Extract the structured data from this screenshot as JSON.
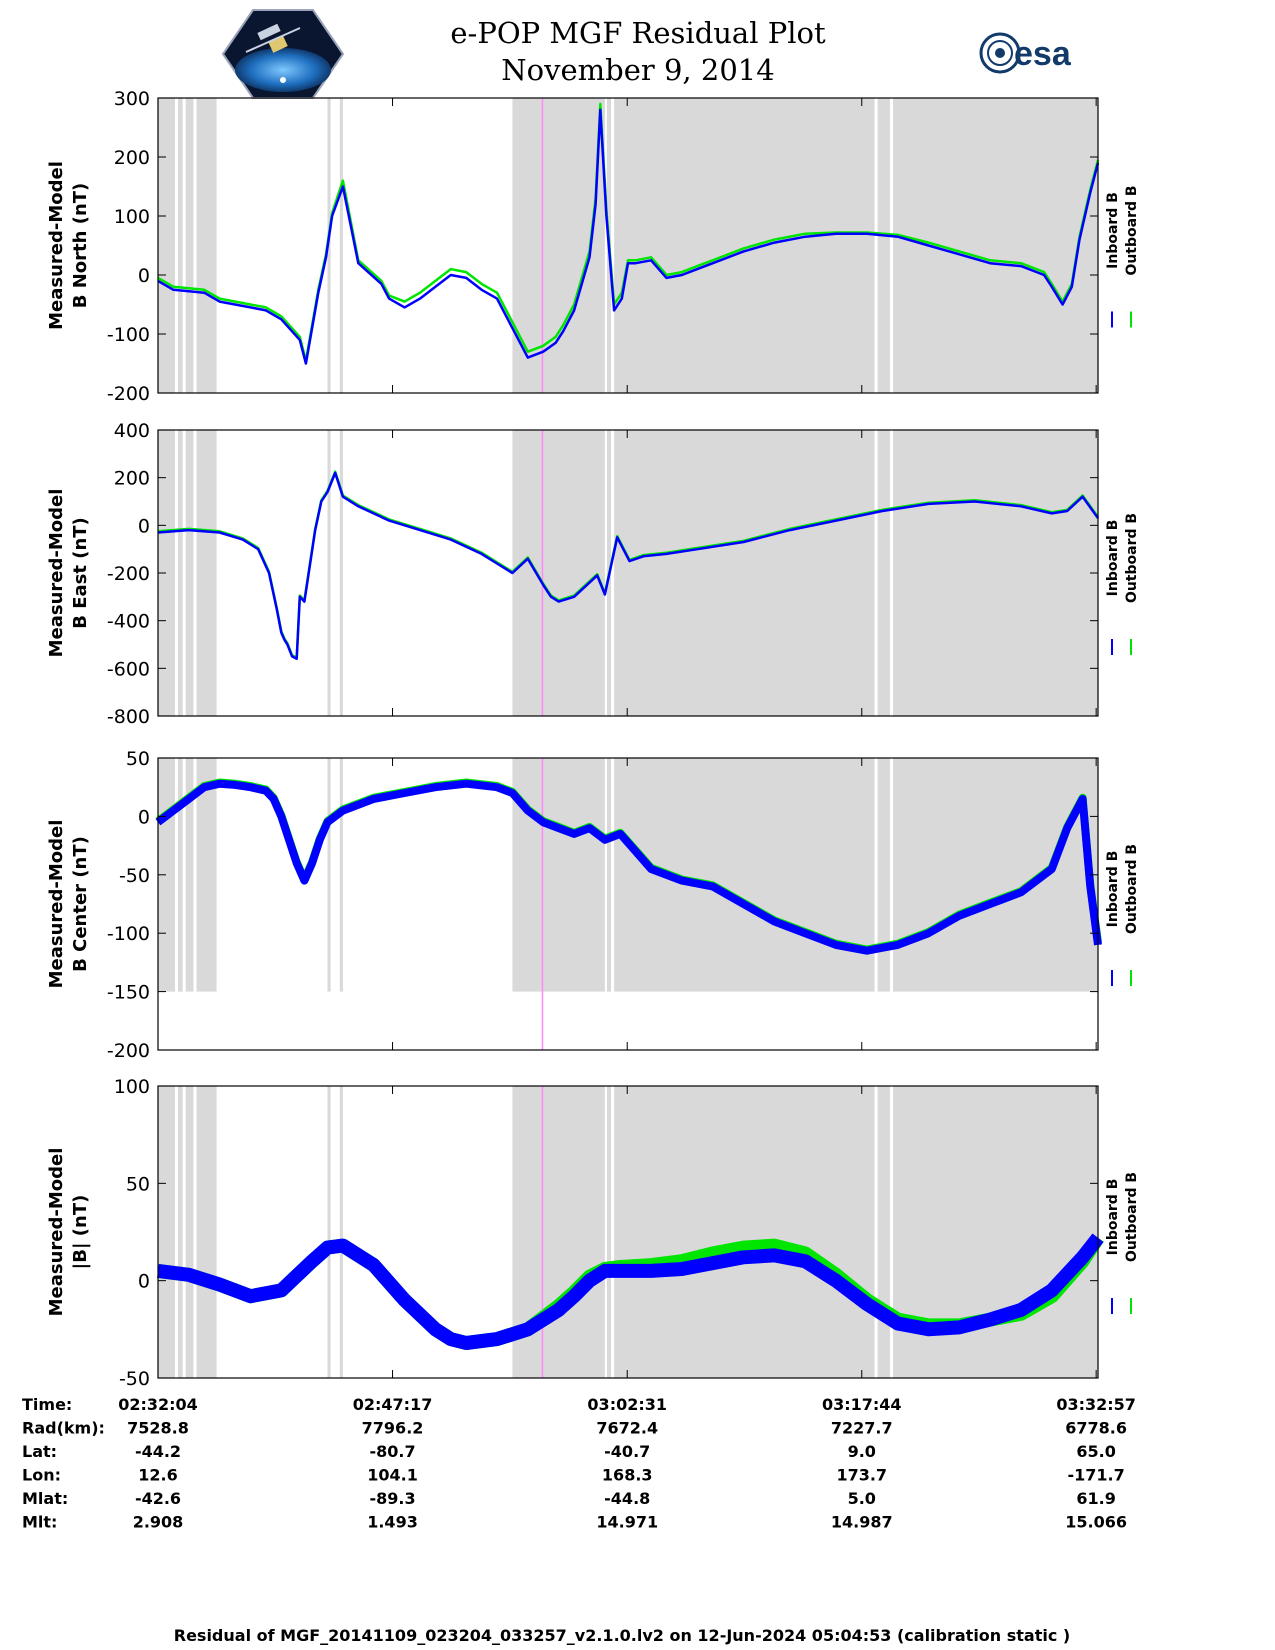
{
  "header": {
    "title_line1": "e-POP MGF Residual Plot",
    "title_line2": "November 9, 2014",
    "left_logo": "cassiope-mission-logo",
    "right_logo_text": "esa"
  },
  "legend": {
    "inboard": "Inboard B",
    "outboard": "Outboard B"
  },
  "colors": {
    "inboard": "#0000ff",
    "outboard": "#00e600",
    "shade": "#d9d9d9",
    "marker": "#ff88ff"
  },
  "ephemeris": {
    "rows": [
      {
        "label": "Time:",
        "values": [
          "02:32:04",
          "02:47:17",
          "03:02:31",
          "03:17:44",
          "03:32:57"
        ]
      },
      {
        "label": "Rad(km):",
        "values": [
          "7528.8",
          "7796.2",
          "7672.4",
          "7227.7",
          "6778.6"
        ]
      },
      {
        "label": "Lat:",
        "values": [
          "-44.2",
          "-80.7",
          "-40.7",
          "9.0",
          "65.0"
        ]
      },
      {
        "label": "Lon:",
        "values": [
          "12.6",
          "104.1",
          "168.3",
          "173.7",
          "-171.7"
        ]
      },
      {
        "label": "Mlat:",
        "values": [
          "-42.6",
          "-89.3",
          "-44.8",
          "5.0",
          "61.9"
        ]
      },
      {
        "label": "Mlt:",
        "values": [
          "2.908",
          "1.493",
          "14.971",
          "14.987",
          "15.066"
        ]
      }
    ]
  },
  "footer": "Residual of MGF_20141109_023204_033257_v2.1.0.lv2 on 12-Jun-2024 05:04:53 (calibration static )",
  "chart_data": [
    {
      "type": "line",
      "ylabel_line1": "Measured-Model",
      "ylabel_line2": "B North (nT)",
      "ylim": [
        -200,
        300
      ],
      "yticks": [
        -200,
        -100,
        0,
        100,
        200,
        300
      ],
      "xlim": [
        0,
        61
      ],
      "grid": false,
      "x_unit": "minutes after 02:32:04",
      "series": [
        {
          "name": "Inboard B",
          "x": [
            0,
            1,
            3,
            4,
            6,
            7,
            8,
            9.2,
            9.6,
            10.4,
            10.9,
            11.3,
            12,
            13,
            14.5,
            15,
            16,
            17,
            18,
            19,
            20,
            21,
            22,
            23,
            24,
            25,
            25.8,
            26.3,
            27,
            28,
            28.4,
            28.7,
            29.1,
            29.6,
            30.1,
            30.5,
            31,
            32,
            33,
            34,
            35,
            36,
            38,
            40,
            42,
            44,
            46,
            48,
            50,
            52,
            54,
            56,
            57.5,
            58,
            58.7,
            59.3,
            59.8,
            60.5,
            61
          ],
          "values": [
            -10,
            -25,
            -30,
            -45,
            -55,
            -60,
            -75,
            -110,
            -150,
            -30,
            30,
            100,
            150,
            20,
            -15,
            -40,
            -55,
            -40,
            -20,
            0,
            -5,
            -25,
            -40,
            -90,
            -140,
            -130,
            -115,
            -95,
            -60,
            30,
            120,
            280,
            100,
            -60,
            -40,
            20,
            20,
            25,
            -5,
            0,
            10,
            20,
            40,
            55,
            65,
            70,
            70,
            65,
            50,
            35,
            20,
            15,
            0,
            -20,
            -50,
            -20,
            60,
            140,
            190
          ]
        },
        {
          "name": "Outboard B",
          "x": [
            0,
            1,
            3,
            4,
            6,
            7,
            8,
            9.2,
            9.6,
            10.4,
            10.9,
            11.3,
            12,
            13,
            14.5,
            15,
            16,
            17,
            18,
            19,
            20,
            21,
            22,
            23,
            24,
            25,
            25.8,
            26.3,
            27,
            28,
            28.4,
            28.7,
            29.1,
            29.6,
            30.1,
            30.5,
            31,
            32,
            33,
            34,
            35,
            36,
            38,
            40,
            42,
            44,
            46,
            48,
            50,
            52,
            54,
            56,
            57.5,
            58,
            58.7,
            59.3,
            59.8,
            60.5,
            61
          ],
          "values": [
            -5,
            -20,
            -25,
            -40,
            -50,
            -55,
            -70,
            -105,
            -145,
            -25,
            35,
            105,
            160,
            25,
            -10,
            -35,
            -45,
            -30,
            -10,
            10,
            5,
            -15,
            -30,
            -80,
            -130,
            -120,
            -105,
            -85,
            -50,
            40,
            130,
            290,
            110,
            -50,
            -30,
            25,
            25,
            30,
            0,
            5,
            15,
            25,
            45,
            60,
            70,
            72,
            72,
            68,
            55,
            40,
            25,
            20,
            5,
            -15,
            -45,
            -15,
            65,
            145,
            195
          ]
        }
      ]
    },
    {
      "type": "line",
      "ylabel_line1": "Measured-Model",
      "ylabel_line2": "B East (nT)",
      "ylim": [
        -800,
        400
      ],
      "yticks": [
        -800,
        -600,
        -400,
        -200,
        0,
        200,
        400
      ],
      "xlim": [
        0,
        61
      ],
      "grid": false,
      "x_unit": "minutes after 02:32:04",
      "series": [
        {
          "name": "Inboard B",
          "x": [
            0,
            2,
            4,
            5.5,
            6.5,
            7.2,
            7.7,
            8,
            8.2,
            8.4,
            8.7,
            9,
            9.2,
            9.5,
            10.2,
            10.6,
            11,
            11.5,
            12,
            13,
            15,
            17,
            19,
            21,
            22,
            23,
            24,
            25,
            25.5,
            26,
            27,
            28.5,
            29,
            29.8,
            30.6,
            31.5,
            33,
            35,
            38,
            41,
            44,
            47,
            50,
            53,
            56,
            58,
            59,
            60,
            61
          ],
          "values": [
            -30,
            -20,
            -30,
            -60,
            -100,
            -200,
            -350,
            -450,
            -480,
            -500,
            -550,
            -560,
            -300,
            -320,
            -20,
            100,
            140,
            220,
            120,
            80,
            20,
            -20,
            -60,
            -120,
            -160,
            -200,
            -140,
            -250,
            -300,
            -320,
            -300,
            -210,
            -290,
            -50,
            -150,
            -130,
            -120,
            -100,
            -70,
            -20,
            20,
            60,
            90,
            100,
            80,
            50,
            60,
            120,
            30
          ]
        },
        {
          "name": "Outboard B",
          "x": [
            0,
            2,
            4,
            5.5,
            6.5,
            7.2,
            7.7,
            8,
            8.2,
            8.4,
            8.7,
            9,
            9.2,
            9.5,
            10.2,
            10.6,
            11,
            11.5,
            12,
            13,
            15,
            17,
            19,
            21,
            22,
            23,
            24,
            25,
            25.5,
            26,
            27,
            28.5,
            29,
            29.8,
            30.6,
            31.5,
            33,
            35,
            38,
            41,
            44,
            47,
            50,
            53,
            56,
            58,
            59,
            60,
            61
          ],
          "values": [
            -25,
            -15,
            -25,
            -55,
            -95,
            -195,
            -345,
            -445,
            -475,
            -495,
            -545,
            -555,
            -295,
            -315,
            -15,
            105,
            145,
            225,
            125,
            85,
            25,
            -15,
            -55,
            -115,
            -155,
            -195,
            -135,
            -245,
            -295,
            -315,
            -295,
            -205,
            -285,
            -45,
            -145,
            -125,
            -115,
            -95,
            -65,
            -15,
            25,
            65,
            95,
            105,
            85,
            55,
            65,
            125,
            35
          ]
        }
      ]
    },
    {
      "type": "line",
      "ylabel_line1": "Measured-Model",
      "ylabel_line2": "B Center (nT)",
      "ylim": [
        -200,
        50
      ],
      "yticks": [
        -200,
        -150,
        -100,
        -50,
        0,
        50
      ],
      "xlim": [
        0,
        61
      ],
      "grid": false,
      "x_unit": "minutes after 02:32:04",
      "series": [
        {
          "name": "Inboard B",
          "x": [
            0,
            1,
            2,
            3,
            4,
            5,
            6,
            7,
            7.5,
            8,
            8.5,
            9,
            9.5,
            10,
            10.5,
            11,
            12,
            14,
            16,
            18,
            20,
            22,
            23,
            24,
            25,
            26,
            27,
            28,
            29,
            30,
            31,
            32,
            34,
            36,
            38,
            40,
            42,
            44,
            46,
            48,
            50,
            52,
            54,
            56,
            58,
            59,
            60,
            60.5,
            61
          ],
          "values": [
            -5,
            5,
            15,
            25,
            28,
            27,
            25,
            22,
            15,
            0,
            -20,
            -40,
            -55,
            -40,
            -20,
            -5,
            5,
            15,
            20,
            25,
            28,
            25,
            20,
            5,
            -5,
            -10,
            -15,
            -10,
            -20,
            -15,
            -30,
            -45,
            -55,
            -60,
            -75,
            -90,
            -100,
            -110,
            -115,
            -110,
            -100,
            -85,
            -75,
            -65,
            -45,
            -10,
            15,
            -60,
            -110
          ]
        },
        {
          "name": "Outboard B",
          "x": [
            0,
            1,
            2,
            3,
            4,
            5,
            6,
            7,
            7.5,
            8,
            8.5,
            9,
            9.5,
            10,
            10.5,
            11,
            12,
            14,
            16,
            18,
            20,
            22,
            23,
            24,
            25,
            26,
            27,
            28,
            29,
            30,
            31,
            32,
            34,
            36,
            38,
            40,
            42,
            44,
            46,
            48,
            50,
            52,
            54,
            56,
            58,
            59,
            60,
            60.5,
            61
          ],
          "values": [
            -4,
            6,
            16,
            26,
            29,
            28,
            26,
            23,
            16,
            1,
            -19,
            -39,
            -54,
            -39,
            -19,
            -4,
            6,
            16,
            21,
            26,
            29,
            26,
            21,
            6,
            -4,
            -9,
            -14,
            -9,
            -19,
            -14,
            -29,
            -44,
            -54,
            -59,
            -74,
            -89,
            -99,
            -109,
            -114,
            -109,
            -99,
            -84,
            -74,
            -64,
            -44,
            -9,
            16,
            -59,
            -108
          ]
        }
      ]
    },
    {
      "type": "line",
      "ylabel_line1": "Measured-Model",
      "ylabel_line2": "|B| (nT)",
      "ylim": [
        -50,
        100
      ],
      "yticks": [
        -50,
        0,
        50,
        100
      ],
      "xlim": [
        0,
        61
      ],
      "grid": false,
      "x_unit": "minutes after 02:32:04",
      "series": [
        {
          "name": "Inboard B",
          "x": [
            0,
            2,
            4,
            6,
            8,
            10,
            11,
            12,
            14,
            16,
            18,
            19,
            20,
            22,
            24,
            26,
            27,
            28,
            29,
            30,
            32,
            34,
            36,
            38,
            40,
            42,
            44,
            46,
            48,
            50,
            52,
            54,
            56,
            58,
            60,
            61
          ],
          "values": [
            5,
            3,
            -2,
            -8,
            -5,
            10,
            17,
            18,
            8,
            -10,
            -25,
            -30,
            -32,
            -30,
            -25,
            -15,
            -8,
            0,
            5,
            5,
            5,
            6,
            9,
            12,
            13,
            10,
            0,
            -12,
            -22,
            -25,
            -24,
            -20,
            -15,
            -5,
            12,
            22
          ]
        },
        {
          "name": "Outboard B",
          "x": [
            0,
            2,
            4,
            6,
            8,
            10,
            11,
            12,
            14,
            16,
            18,
            19,
            20,
            22,
            24,
            26,
            27,
            28,
            29,
            30,
            32,
            34,
            36,
            38,
            40,
            42,
            44,
            46,
            48,
            50,
            52,
            54,
            56,
            58,
            60,
            61
          ],
          "values": [
            5,
            3,
            -2,
            -8,
            -5,
            10,
            17,
            18,
            8,
            -10,
            -25,
            -30,
            -32,
            -30,
            -25,
            -13,
            -6,
            2,
            6,
            7,
            8,
            10,
            14,
            17,
            18,
            14,
            3,
            -10,
            -20,
            -23,
            -23,
            -20,
            -17,
            -8,
            10,
            22
          ]
        }
      ]
    }
  ]
}
